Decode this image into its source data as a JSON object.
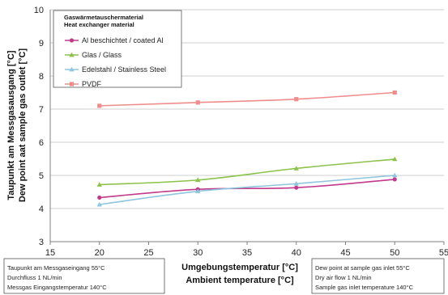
{
  "chart_data": {
    "type": "line",
    "xlabel": [
      "Umgebungstemperatur [°C]",
      "Ambient temperature [°C]"
    ],
    "ylabel": [
      "Taupunkt am Messgasausgang [°C]",
      "Dew point aat sample gas outlet [°C]"
    ],
    "xlim": [
      15,
      55
    ],
    "ylim": [
      3,
      10
    ],
    "x_ticks": [
      "15",
      "20",
      "25",
      "30",
      "35",
      "40",
      "45",
      "50",
      "55"
    ],
    "y_ticks": [
      "3",
      "4",
      "5",
      "6",
      "7",
      "8",
      "9",
      "10"
    ],
    "x": [
      20,
      30,
      40,
      50
    ],
    "grid": "horizontal",
    "legend": {
      "title": [
        "Gaswärmetauschermaterial",
        "Heat exchanger material"
      ],
      "placement": "top-left"
    },
    "series": [
      {
        "name": "Al beschichtet / coated Al",
        "values": [
          4.33,
          4.58,
          4.63,
          4.88
        ],
        "color": "#c2398a",
        "marker": "circle"
      },
      {
        "name": "Glas / Glass",
        "values": [
          4.72,
          4.86,
          5.21,
          5.49
        ],
        "color": "#8cc24a",
        "marker": "triangle"
      },
      {
        "name": "Edelstahl / Stainless Steel",
        "values": [
          4.12,
          4.52,
          4.75,
          5.0
        ],
        "color": "#8dc6dd",
        "marker": "triangle"
      },
      {
        "name": "PVDF",
        "values": [
          7.1,
          7.2,
          7.3,
          7.5
        ],
        "color": "#ef8d8d",
        "marker": "square"
      }
    ],
    "notes_left": [
      "Taupunkt am Messgaseingang 55°C",
      "Durchfluss 1 NL/min",
      "Messgas Eingangstemperatur 140°C"
    ],
    "notes_right": [
      "Dew point at sample gas inlet 55°C",
      "Dry air flow 1 NL/min",
      "Sample gas inlet temperature 140°C"
    ]
  }
}
